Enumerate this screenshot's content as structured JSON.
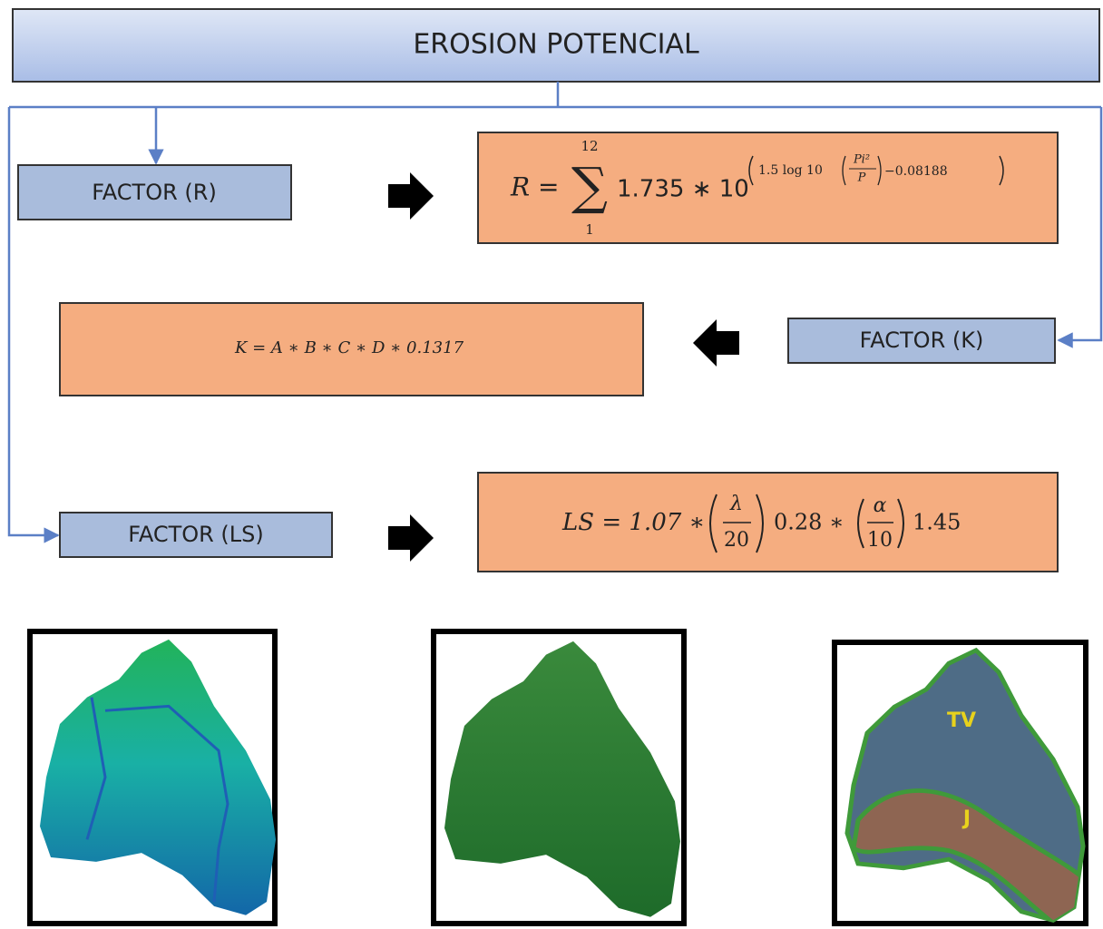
{
  "title": "EROSION POTENCIAL",
  "factors": {
    "r": "FACTOR (R)",
    "k": "FACTOR (K)",
    "ls": "FACTOR (LS)"
  },
  "formulas": {
    "r": {
      "lhs": "R =",
      "sigma": "∑",
      "upper": "12",
      "lower": "1",
      "base": "1.735 ∗ 10",
      "exponent": "1.5 log 10",
      "numerator": "Pi²",
      "denominator": "P",
      "tail": "−0.08188"
    },
    "k": "K = A ∗ B ∗ C ∗ D ∗ 0.1317",
    "ls": {
      "lhs": "LS = 1.07 ∗",
      "num1": "λ",
      "den1": "20",
      "mid": "0.28 ∗",
      "num2": "α",
      "den2": "10",
      "tail": "1.45"
    }
  },
  "maps": {
    "lithology_labels": [
      "TV",
      "J"
    ]
  }
}
